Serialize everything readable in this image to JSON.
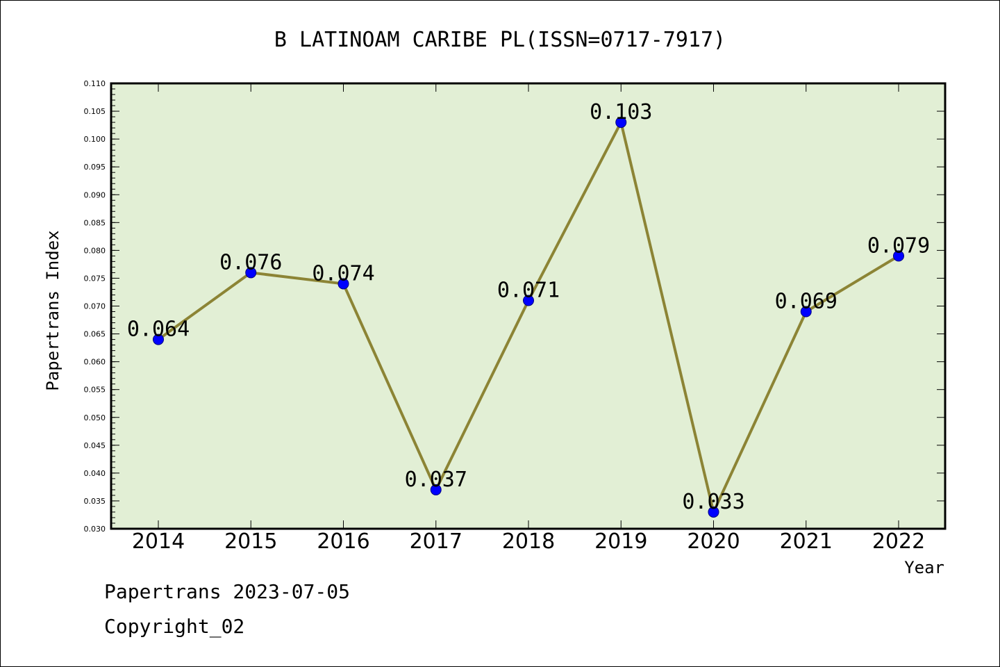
{
  "chart_data": {
    "type": "line",
    "title": "B LATINOAM CARIBE PL(ISSN=0717-7917)",
    "xlabel": "Year",
    "ylabel": "Papertrans Index",
    "categories": [
      "2014",
      "2015",
      "2016",
      "2017",
      "2018",
      "2019",
      "2020",
      "2021",
      "2022"
    ],
    "values": [
      0.064,
      0.076,
      0.074,
      0.037,
      0.071,
      0.103,
      0.033,
      0.069,
      0.079
    ],
    "data_labels": [
      "0.064",
      "0.076",
      "0.074",
      "0.037",
      "0.071",
      "0.103",
      "0.033",
      "0.069",
      "0.079"
    ],
    "ylim": [
      0.03,
      0.11
    ],
    "y_ticks": [
      "0.030",
      "0.035",
      "0.040",
      "0.045",
      "0.050",
      "0.055",
      "0.060",
      "0.065",
      "0.070",
      "0.075",
      "0.080",
      "0.085",
      "0.090",
      "0.095",
      "0.100",
      "0.105",
      "0.110"
    ],
    "grid": false,
    "legend": "none",
    "colors": {
      "plot_background": "#e2efd5",
      "line": "#8c8435",
      "marker": "#0000ff",
      "marker_edge": "#000080"
    }
  },
  "footer": {
    "line1": "Papertrans 2023-07-05",
    "line2": "Copyright_02"
  }
}
